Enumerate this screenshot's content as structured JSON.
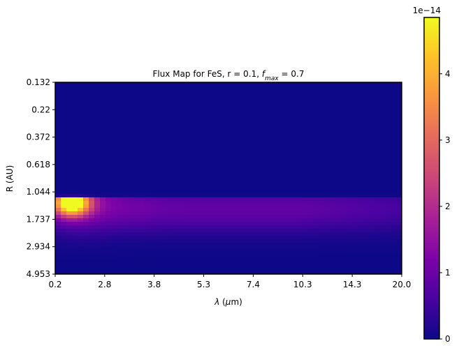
{
  "chart_data": {
    "type": "heatmap",
    "title": {
      "prefix": "Flux Map for FeS, r = 0.1, ",
      "f_symbol": "f",
      "f_subscript": "max",
      "suffix": " = 0.7"
    },
    "xlabel": {
      "symbol": "λ",
      "text_open": " (",
      "mu": "μ",
      "text_close": "m)"
    },
    "ylabel": "R (AU)",
    "x_tick_labels": [
      "0.2",
      "2.8",
      "3.8",
      "5.3",
      "7.4",
      "10.3",
      "14.3",
      "20.0"
    ],
    "y_tick_labels": [
      "0.132",
      "0.22",
      "0.372",
      "0.618",
      "1.044",
      "1.737",
      "2.934",
      "4.953"
    ],
    "colormap": "plasma",
    "colorbar": {
      "multiplier_label": "1e−14",
      "ticks": [
        "0",
        "1",
        "2",
        "3",
        "4"
      ],
      "range": [
        0,
        4.85
      ]
    },
    "flux_description": {
      "zero_above_R_AU": 1.044,
      "peak_value": 4.85,
      "peak_lambda_um": 1.5,
      "peak_R_AU": 1.2,
      "extended_band_value_approx": 0.9,
      "extended_band_R_AU": 1.4
    }
  }
}
